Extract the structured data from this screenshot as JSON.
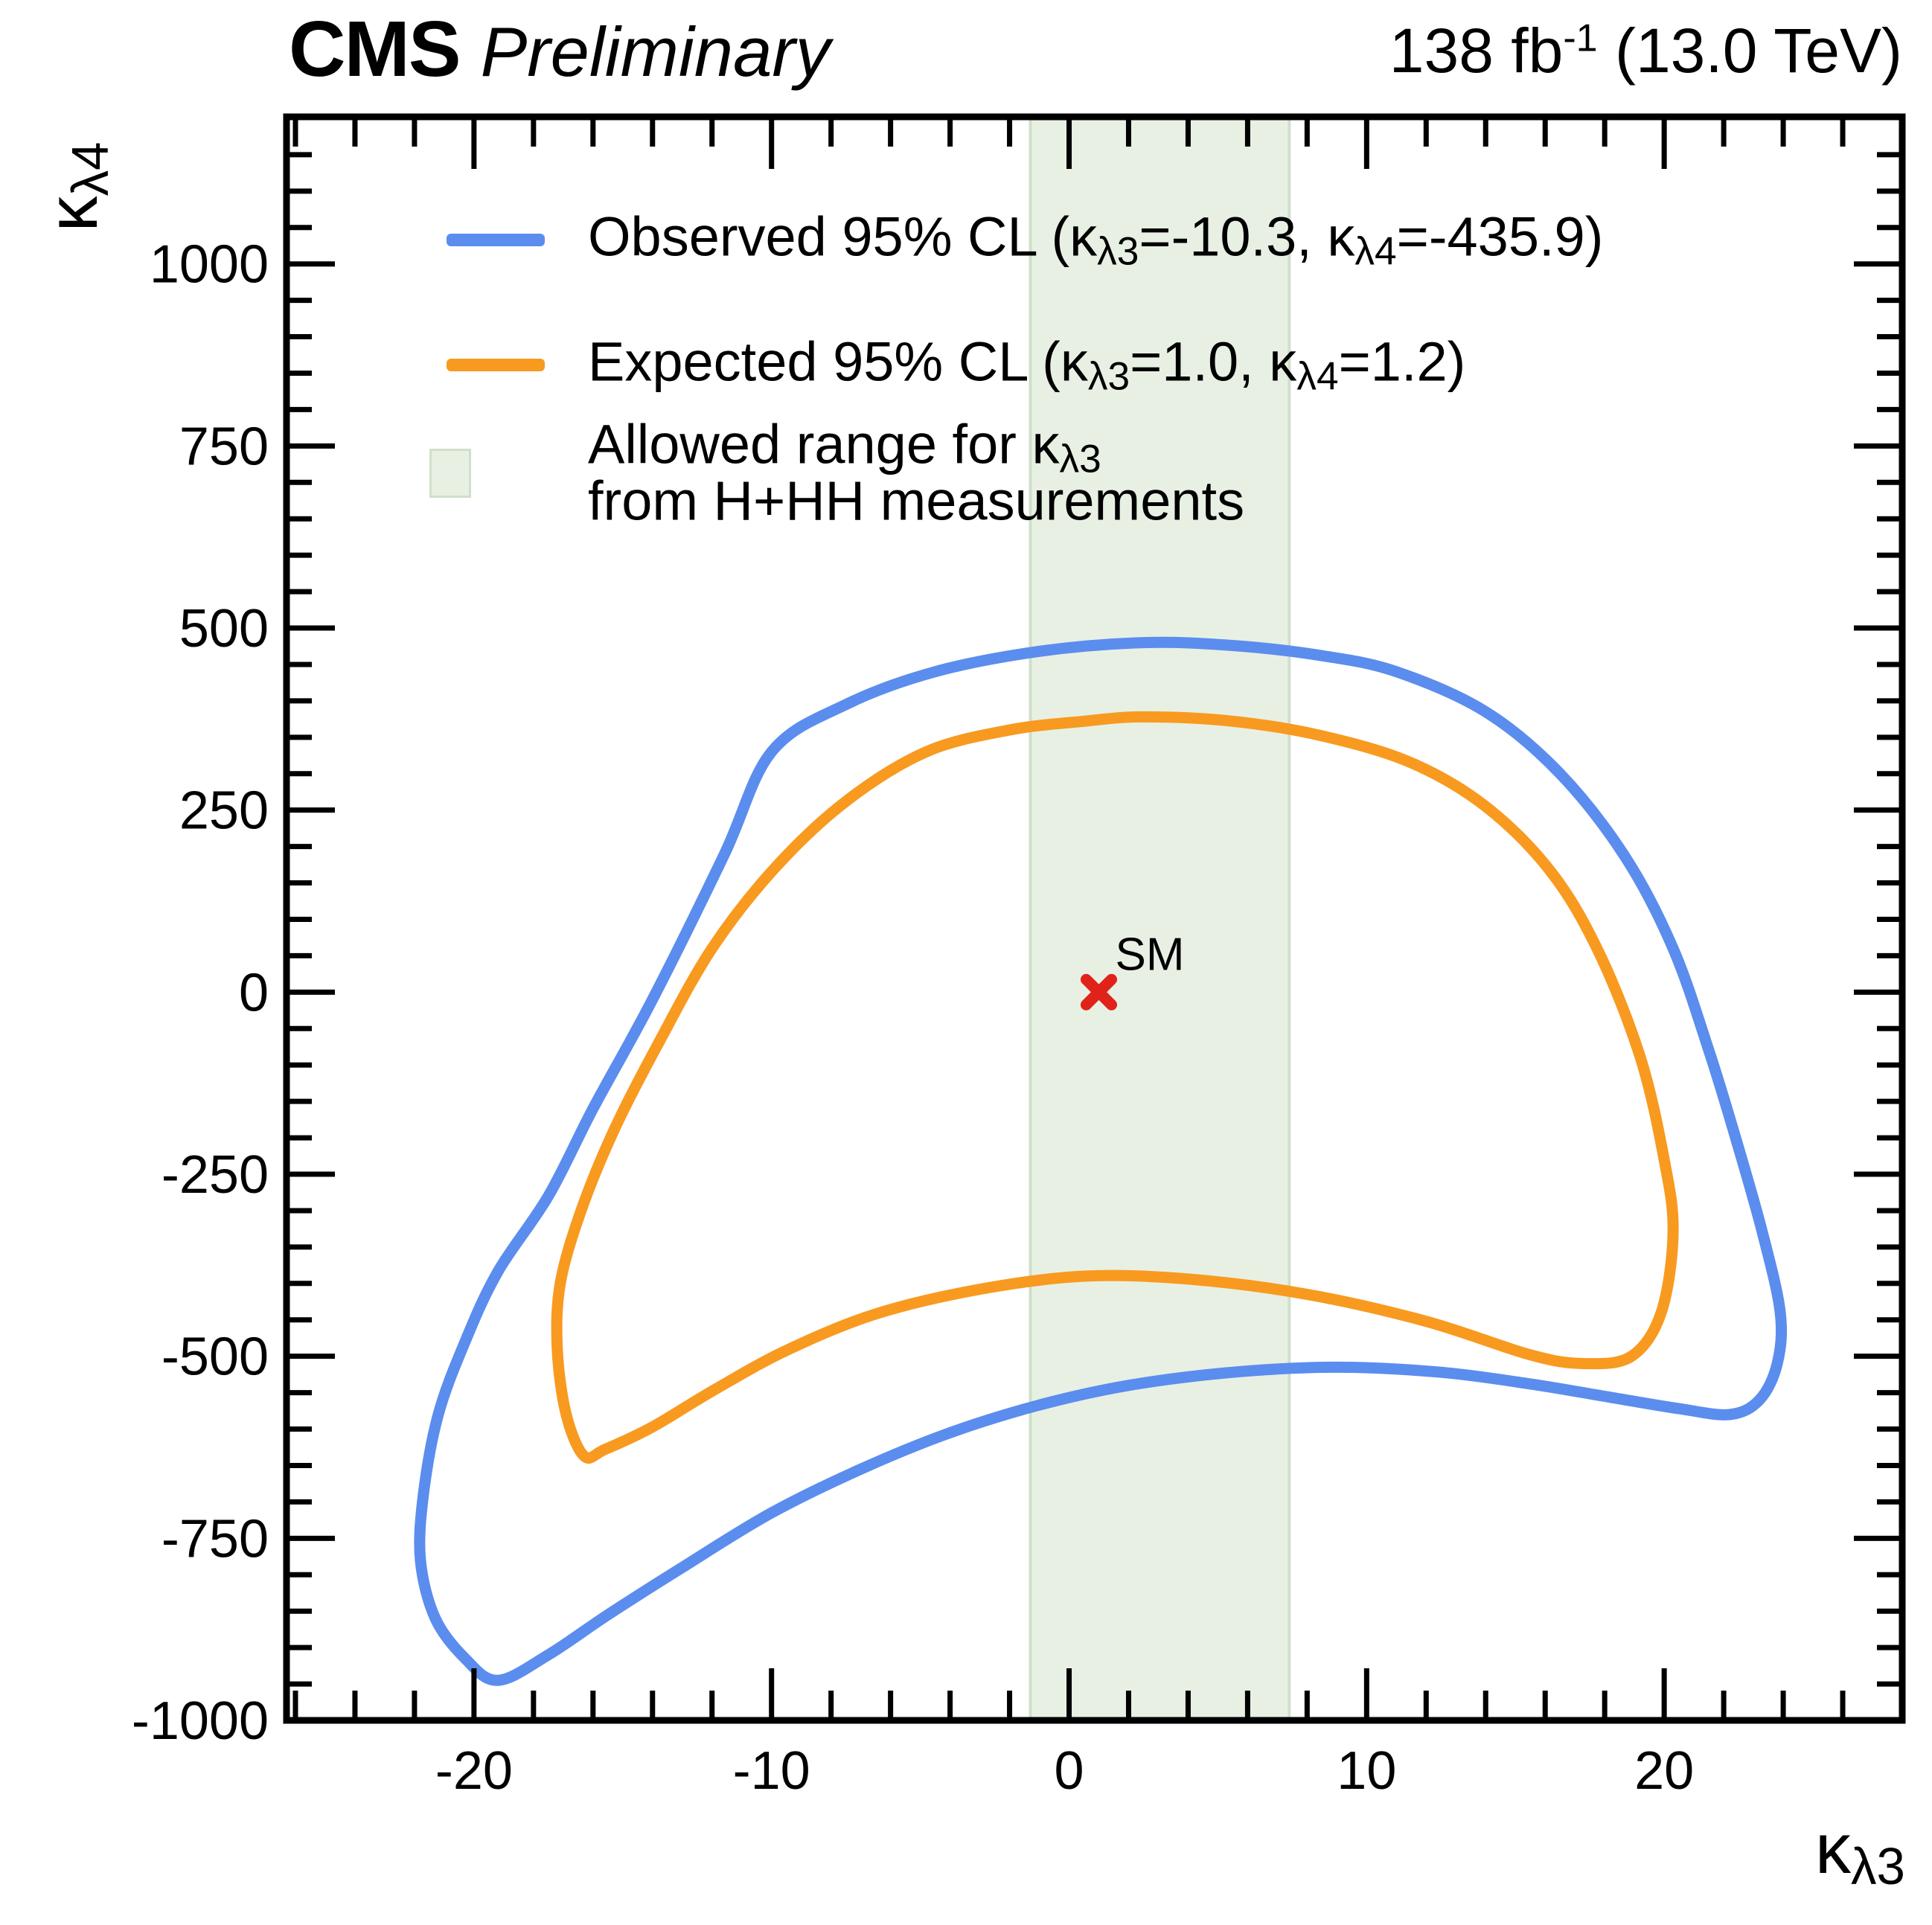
{
  "header": {
    "experiment": "CMS",
    "status": "Preliminary",
    "lumi_value": "138 fb",
    "lumi_sup": "-1",
    "lumi_rest": " (13.0 TeV)"
  },
  "axes": {
    "x": {
      "title_main": "κ",
      "title_sub": "λ3"
    },
    "y": {
      "title_main": "κ",
      "title_sub": "λ4"
    }
  },
  "colors": {
    "observed": "#5b8dee",
    "expected": "#f89a20",
    "band_fill": "#e8f0e4",
    "band_edge": "#cfe0ca",
    "sm_marker": "#e0231a",
    "frame": "#000000"
  },
  "legend": {
    "items": [
      {
        "swatch": "line",
        "color": "#5b8dee",
        "label": "Observed 95% CL (κλ3=-10.3, κλ4=-435.9)",
        "lines": [
          [
            [
              "t",
              "Observed 95% CL (κ"
            ],
            [
              "sub",
              "λ3"
            ],
            [
              "t",
              "=-10.3, κ"
            ],
            [
              "sub",
              "λ4"
            ],
            [
              "t",
              "=-435.9)"
            ]
          ]
        ]
      },
      {
        "swatch": "line",
        "color": "#f89a20",
        "label": "Expected 95% CL (κλ3=1.0, κλ4=1.2)",
        "lines": [
          [
            [
              "t",
              "Expected 95% CL (κ"
            ],
            [
              "sub",
              "λ3"
            ],
            [
              "t",
              "=1.0, κ"
            ],
            [
              "sub",
              "λ4"
            ],
            [
              "t",
              "=1.2)"
            ]
          ]
        ]
      },
      {
        "swatch": "box",
        "color": "#e8f0e4",
        "border": "#cfe0ca",
        "label": "Allowed range for κλ3 from H+HH measurements",
        "lines": [
          [
            [
              "t",
              "Allowed range for κ"
            ],
            [
              "sub",
              "λ3"
            ]
          ],
          [
            [
              "t",
              "from H+HH measurements"
            ]
          ]
        ]
      }
    ]
  },
  "chart_data": {
    "type": "contour",
    "title": "CMS Preliminary 138 fb-1 (13.0 TeV)",
    "xlabel": "kappa_lambda3",
    "ylabel": "kappa_lambda4",
    "xlim": [
      -26.3,
      28.0
    ],
    "ylim": [
      -1000,
      1202
    ],
    "x_major_ticks": [
      -20,
      -10,
      0,
      10,
      20
    ],
    "x_tick_labels": [
      "-20",
      "-10",
      "0",
      "10",
      "20"
    ],
    "x_minor_step": 2,
    "y_major_ticks": [
      -1000,
      -750,
      -500,
      -250,
      0,
      250,
      500,
      750,
      1000
    ],
    "y_tick_labels": [
      "-1000",
      "-750",
      "-500",
      "-250",
      "0",
      "250",
      "500",
      "750",
      "1000"
    ],
    "y_minor_step": 50,
    "grid": false,
    "legend_position": "top-left-inside",
    "band": {
      "name": "Allowed range for klambda3 from H+HH measurements",
      "x_min": -1.3,
      "x_max": 7.4
    },
    "sm": {
      "x": 1.0,
      "y": 0.0,
      "label": "SM"
    },
    "series": [
      {
        "name": "Observed 95% CL",
        "best_fit": {
          "klambda3": -10.3,
          "klambda4": -435.9
        },
        "color": "#5b8dee",
        "points": [
          [
            2.5,
            480
          ],
          [
            5.5,
            476
          ],
          [
            8.5,
            462
          ],
          [
            11,
            440
          ],
          [
            14,
            385
          ],
          [
            16.5,
            300
          ],
          [
            18.7,
            185
          ],
          [
            20.3,
            60
          ],
          [
            21.5,
            -80
          ],
          [
            22.4,
            -200
          ],
          [
            23.3,
            -330
          ],
          [
            23.9,
            -440
          ],
          [
            23.8,
            -510
          ],
          [
            23.2,
            -560
          ],
          [
            22.2,
            -580
          ],
          [
            20.5,
            -572
          ],
          [
            18,
            -555
          ],
          [
            15.5,
            -538
          ],
          [
            12.5,
            -522
          ],
          [
            9,
            -515
          ],
          [
            5.5,
            -522
          ],
          [
            2,
            -540
          ],
          [
            -1,
            -567
          ],
          [
            -4,
            -605
          ],
          [
            -7,
            -655
          ],
          [
            -10,
            -715
          ],
          [
            -13,
            -790
          ],
          [
            -15.5,
            -855
          ],
          [
            -17.5,
            -910
          ],
          [
            -19.2,
            -945
          ],
          [
            -20.3,
            -915
          ],
          [
            -21.3,
            -860
          ],
          [
            -21.8,
            -780
          ],
          [
            -21.7,
            -690
          ],
          [
            -21.2,
            -580
          ],
          [
            -20.3,
            -480
          ],
          [
            -19.2,
            -384
          ],
          [
            -17.5,
            -280
          ],
          [
            -16,
            -160
          ],
          [
            -14,
            -10
          ],
          [
            -11.6,
            188
          ],
          [
            -10,
            330
          ],
          [
            -7.5,
            395
          ],
          [
            -4.5,
            440
          ],
          [
            -1,
            468
          ]
        ]
      },
      {
        "name": "Expected 95% CL",
        "best_fit": {
          "klambda3": 1.0,
          "klambda4": 1.2
        },
        "color": "#f89a20",
        "points": [
          [
            2.5,
            378
          ],
          [
            5.5,
            372
          ],
          [
            8.5,
            352
          ],
          [
            11.5,
            315
          ],
          [
            14,
            255
          ],
          [
            16.2,
            165
          ],
          [
            17.8,
            55
          ],
          [
            19.2,
            -90
          ],
          [
            20.0,
            -230
          ],
          [
            20.3,
            -330
          ],
          [
            19.9,
            -440
          ],
          [
            18.9,
            -500
          ],
          [
            17.3,
            -510
          ],
          [
            15.5,
            -498
          ],
          [
            12,
            -452
          ],
          [
            8,
            -415
          ],
          [
            4,
            -394
          ],
          [
            0.5,
            -390
          ],
          [
            -3,
            -408
          ],
          [
            -6.5,
            -442
          ],
          [
            -9.5,
            -492
          ],
          [
            -12,
            -548
          ],
          [
            -14,
            -597
          ],
          [
            -15.6,
            -628
          ],
          [
            -16.3,
            -637
          ],
          [
            -16.9,
            -580
          ],
          [
            -17.2,
            -490
          ],
          [
            -17.1,
            -400
          ],
          [
            -16.4,
            -300
          ],
          [
            -15.3,
            -190
          ],
          [
            -13.8,
            -70
          ],
          [
            -12,
            60
          ],
          [
            -9.9,
            170
          ],
          [
            -7.5,
            262
          ],
          [
            -4.8,
            330
          ],
          [
            -2,
            360
          ],
          [
            0.5,
            372
          ]
        ]
      }
    ]
  }
}
